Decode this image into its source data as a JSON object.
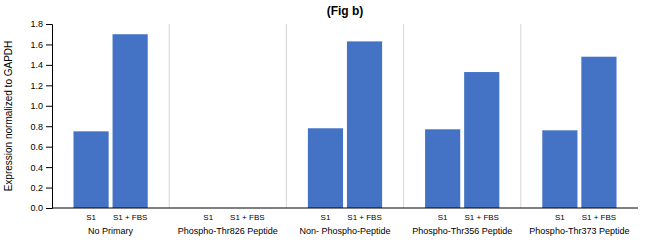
{
  "chart_data": {
    "type": "bar",
    "title": "(Fig b)",
    "categories": [
      "No Primary",
      "Phospho-Thr826 Peptide",
      "Non- Phospho-Peptide",
      "Phospho-Thr356 Peptide",
      "Phospho-Thr373 Peptide"
    ],
    "series": [
      {
        "name": "S1",
        "values": [
          0.75,
          0.0,
          0.78,
          0.77,
          0.76
        ]
      },
      {
        "name": "S1 + FBS",
        "values": [
          1.7,
          0.0,
          1.63,
          1.33,
          1.48
        ]
      }
    ],
    "color": "#4472C4",
    "ylabel": "Expression normalized to GAPDH",
    "ylim": [
      0,
      1.8
    ],
    "yticks": [
      {
        "value": 0.0,
        "label": "0.0"
      },
      0.2,
      0.4,
      0.6,
      0.8,
      {
        "value": 1.0,
        "label": "1.0"
      },
      1.2,
      1.4,
      1.6,
      1.8
    ]
  }
}
